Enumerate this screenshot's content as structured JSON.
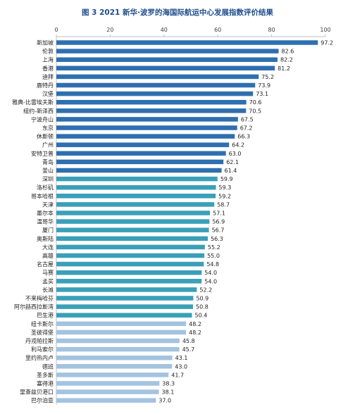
{
  "chart_data": {
    "type": "bar",
    "orientation": "horizontal",
    "title": "图 3 2021 新华·波罗的海国际航运中心发展指数评价结果",
    "xlabel": "",
    "ylabel": "",
    "xlim": [
      0,
      100
    ],
    "ticks": [
      0,
      20,
      40,
      60,
      80,
      100
    ],
    "axis_position": "top",
    "grid": false,
    "tier_colors": [
      "#2e6fb0",
      "#3aa0b8",
      "#a3c3e0"
    ],
    "categories": [
      "新加坡",
      "伦敦",
      "上海",
      "香港",
      "迪拜",
      "鹿特丹",
      "汉堡",
      "雅典-比雷埃夫斯",
      "纽约-新泽西",
      "宁波舟山",
      "东京",
      "休斯顿",
      "广州",
      "安特卫普",
      "青岛",
      "釜山",
      "深圳",
      "洛杉矶",
      "哥本哈根",
      "天津",
      "墨尔本",
      "温哥华",
      "厦门",
      "奥斯陆",
      "大连",
      "高雄",
      "名古屋",
      "马赛",
      "孟买",
      "长滩",
      "不来梅哈芬",
      "阿尔赫西拉斯湾",
      "巴生港",
      "纽卡斯尔",
      "圣彼得堡",
      "丹戎帕拉斯",
      "利马索尔",
      "里约热内卢",
      "德班",
      "圣多斯",
      "塞得港",
      "里查兹贝港口",
      "巴尔泊亚"
    ],
    "values": [
      97.2,
      82.6,
      82.2,
      81.2,
      75.2,
      73.9,
      73.1,
      70.6,
      70.5,
      67.5,
      67.2,
      66.3,
      64.2,
      63.0,
      62.1,
      61.4,
      59.9,
      59.3,
      59.2,
      58.7,
      57.1,
      56.9,
      56.7,
      56.3,
      55.2,
      55.0,
      54.8,
      54.0,
      54.0,
      52.2,
      50.9,
      50.8,
      50.4,
      48.2,
      48.2,
      45.8,
      45.7,
      43.1,
      43.0,
      41.7,
      38.3,
      38.1,
      37.0
    ],
    "tier": [
      0,
      0,
      0,
      0,
      0,
      0,
      0,
      0,
      0,
      0,
      0,
      0,
      0,
      0,
      0,
      0,
      1,
      1,
      1,
      1,
      1,
      1,
      1,
      1,
      1,
      1,
      1,
      1,
      1,
      1,
      1,
      1,
      1,
      2,
      2,
      2,
      2,
      2,
      2,
      2,
      2,
      2,
      2
    ]
  }
}
